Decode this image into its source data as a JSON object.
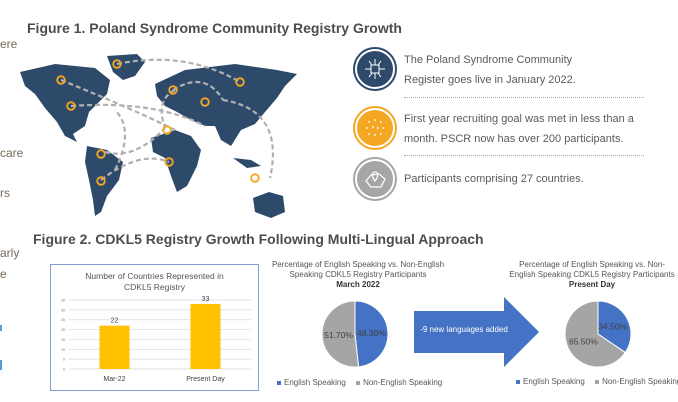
{
  "left_fragments": [
    "ere",
    "care",
    "rs",
    "arly",
    "e"
  ],
  "figure1": {
    "title": "Figure 1. Poland Syndrome Community Registry Growth",
    "items": [
      {
        "icon": "network-icon",
        "color": "#2e4a6b",
        "lines": [
          "The Poland Syndrome Community",
          "Register goes live in January 2022."
        ]
      },
      {
        "icon": "crowd-icon",
        "color": "#f5a623",
        "lines": [
          "First year recruiting goal was met in less than a",
          "month. PSCR now has over 200 participants."
        ]
      },
      {
        "icon": "map-pin-icon",
        "color": "#a6a6a6",
        "lines": [
          "Participants comprising 27 countries."
        ]
      }
    ],
    "map_colors": {
      "land": "#2e4a6b",
      "marker": "#f5a623",
      "route": "#b0b0b0"
    }
  },
  "figure2": {
    "title": "Figure 2. CDKL5 Registry Growth Following Multi-Lingual Approach",
    "arrow_label": "-9 new languages added",
    "arrow_color": "#4472c4"
  },
  "chart_data": [
    {
      "type": "bar",
      "title": "Number of Countries Represented in CDKL5 Registry",
      "categories": [
        "Mar-22",
        "Present Day"
      ],
      "values": [
        22,
        33
      ],
      "data_labels": [
        "22",
        "33"
      ],
      "ylim": [
        0,
        35
      ],
      "yticks": [
        "0",
        "5",
        "10",
        "15",
        "20",
        "25",
        "30",
        "35"
      ],
      "grid": true,
      "color": "#ffc000"
    },
    {
      "type": "pie",
      "title": "Percentage of English Speaking vs. Non-English Speaking CDKL5 Registry Participants",
      "subtitle": "March 2022",
      "slices": [
        {
          "name": "English Speaking",
          "value": 48.3,
          "label": "48.30%",
          "color": "#4472c4"
        },
        {
          "name": "Non-English Speaking",
          "value": 51.7,
          "label": "51.70%",
          "color": "#a5a5a5"
        }
      ],
      "legend": "bottom"
    },
    {
      "type": "pie",
      "title": "Percentage of English Speaking vs. Non-English Speaking CDKL5 Registry Participants",
      "subtitle": "Present Day",
      "slices": [
        {
          "name": "English Speaking",
          "value": 34.5,
          "label": "34.50%",
          "color": "#4472c4"
        },
        {
          "name": "Non-English Speaking",
          "value": 65.5,
          "label": "65.50%",
          "color": "#a5a5a5"
        }
      ],
      "legend": "bottom"
    }
  ]
}
